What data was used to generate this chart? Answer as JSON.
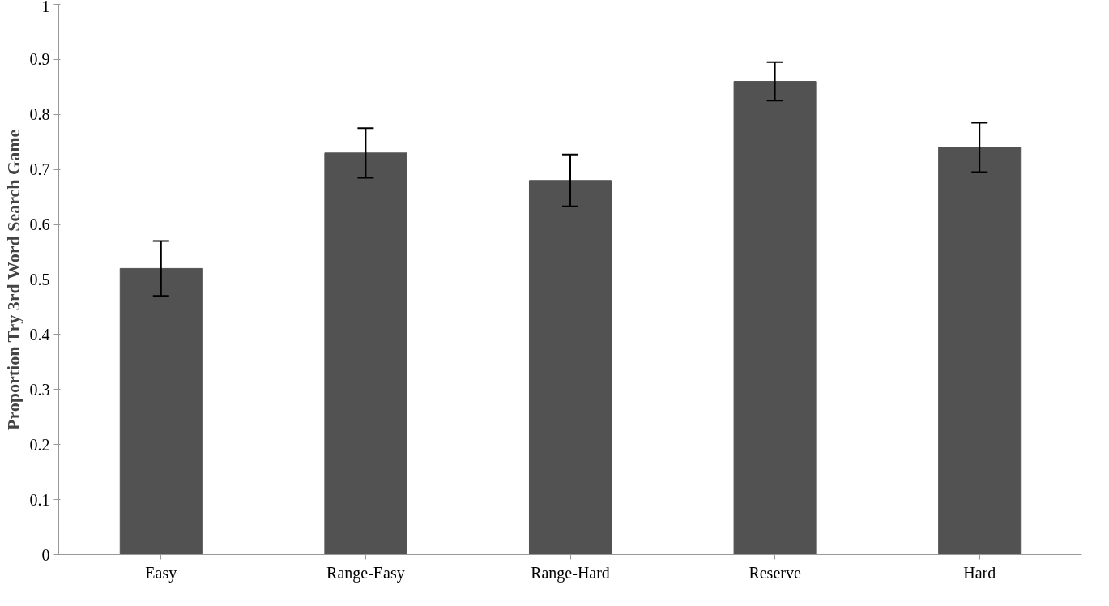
{
  "chart_data": {
    "type": "bar",
    "ylabel": "Proportion Try 3rd Word Search Game",
    "categories": [
      "Easy",
      "Range-Easy",
      "Range-Hard",
      "Reserve",
      "Hard"
    ],
    "values": [
      0.52,
      0.73,
      0.68,
      0.86,
      0.74
    ],
    "errors": [
      0.05,
      0.045,
      0.047,
      0.035,
      0.045
    ],
    "color": "#525252",
    "ylim": [
      0,
      1
    ],
    "yticks": [
      0,
      0.1,
      0.2,
      0.3,
      0.4,
      0.5,
      0.6,
      0.7,
      0.8,
      0.9,
      1
    ],
    "grid": false
  }
}
